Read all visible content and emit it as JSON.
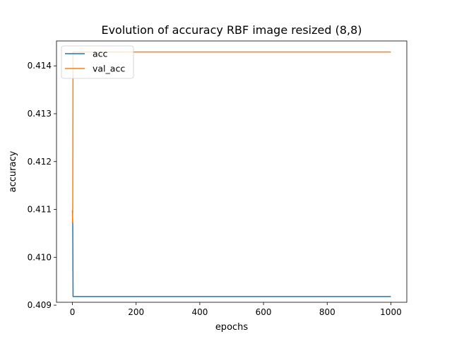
{
  "chart_data": {
    "type": "line",
    "title": "Evolution of accuracy RBF image resized (8,8)",
    "xlabel": "epochs",
    "ylabel": "accuracy",
    "xlim": [
      -50,
      1050
    ],
    "ylim": [
      0.40906,
      0.41452
    ],
    "xticks": [
      0,
      200,
      400,
      600,
      800,
      1000
    ],
    "xtick_labels": [
      "0",
      "200",
      "400",
      "600",
      "800",
      "1000"
    ],
    "yticks": [
      0.409,
      0.41,
      0.411,
      0.412,
      0.413,
      0.414
    ],
    "ytick_labels": [
      "0.409",
      "0.410",
      "0.411",
      "0.412",
      "0.413",
      "0.414"
    ],
    "grid": false,
    "legend_position": "top-left",
    "series": [
      {
        "name": "acc",
        "color": "#1f77b4",
        "x": [
          0,
          1,
          2,
          5,
          1000
        ],
        "y": [
          0.41098,
          0.4107,
          0.40918,
          0.40918,
          0.40918
        ]
      },
      {
        "name": "val_acc",
        "color": "#ff7f0e",
        "x": [
          0,
          1,
          2,
          5,
          1000
        ],
        "y": [
          0.41071,
          0.41098,
          0.41429,
          0.41429,
          0.41429
        ]
      }
    ]
  }
}
